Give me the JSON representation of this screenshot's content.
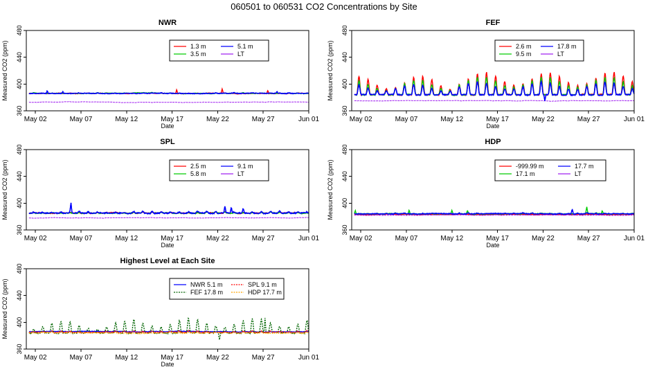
{
  "figure_title": "060501  to  060531 CO2 Concentrations by Site",
  "chart_data": [
    {
      "type": "line",
      "title": "NWR",
      "xlabel": "Date",
      "ylabel": "Measured CO2 (ppm)",
      "xlim": [
        0,
        31
      ],
      "ylim": [
        360,
        480
      ],
      "yticks": [
        360,
        400,
        440,
        480
      ],
      "ytick_labels": [
        "360",
        "400",
        "440",
        "480"
      ],
      "xticks": [
        1,
        6,
        11,
        16,
        21,
        26,
        31
      ],
      "xtick_labels": [
        "May 02",
        "May 07",
        "May 12",
        "May 17",
        "May 22",
        "May 27",
        "Jun 01"
      ],
      "legend": {
        "placement": "top-right",
        "columns": 2,
        "entries": [
          "1.3 m",
          "3.5 m",
          "5.1 m",
          "LT"
        ]
      },
      "series": [
        {
          "name": "1.3 m",
          "color": "#ff0000",
          "base": 386,
          "diurnal": 0.5,
          "noise": 0.8,
          "spikes": [
            [
              16.5,
              6
            ],
            [
              21.5,
              7
            ],
            [
              26.5,
              5
            ]
          ]
        },
        {
          "name": "3.5 m",
          "color": "#00cc00",
          "base": 386,
          "diurnal": 0.5,
          "noise": 0.8,
          "spikes": []
        },
        {
          "name": "5.1 m",
          "color": "#0000ff",
          "base": 386,
          "diurnal": 0.5,
          "noise": 0.9,
          "spikes": [
            [
              2.3,
              4
            ],
            [
              4.0,
              3
            ],
            [
              27.5,
              3
            ]
          ]
        },
        {
          "name": "LT",
          "color": "#a020f0",
          "base": 373,
          "diurnal": 0,
          "noise": 0.3,
          "spikes": []
        }
      ]
    },
    {
      "type": "line",
      "title": "FEF",
      "xlabel": "Date",
      "ylabel": "Measured CO2 (ppm)",
      "xlim": [
        0,
        31
      ],
      "ylim": [
        360,
        480
      ],
      "yticks": [
        360,
        400,
        440,
        480
      ],
      "ytick_labels": [
        "360",
        "400",
        "440",
        "480"
      ],
      "xticks": [
        1,
        6,
        11,
        16,
        21,
        26,
        31
      ],
      "xtick_labels": [
        "May 02",
        "May 07",
        "May 12",
        "May 17",
        "May 22",
        "May 27",
        "Jun 01"
      ],
      "legend": {
        "placement": "top-right",
        "columns": 2,
        "entries": [
          "2.6 m",
          "9.5 m",
          "17.8 m",
          "LT"
        ]
      },
      "series": [
        {
          "name": "2.6 m",
          "color": "#ff0000",
          "base": 384,
          "diurnal": 28,
          "noise": 1.5,
          "spikes": []
        },
        {
          "name": "9.5 m",
          "color": "#00cc00",
          "base": 384,
          "diurnal": 22,
          "noise": 1.5,
          "spikes": []
        },
        {
          "name": "17.8 m",
          "color": "#0000ff",
          "base": 384,
          "diurnal": 16,
          "noise": 1.5,
          "spikes": [
            [
              21.2,
              -10
            ]
          ]
        },
        {
          "name": "LT",
          "color": "#a020f0",
          "base": 375,
          "diurnal": 0,
          "noise": 0.3,
          "spikes": []
        }
      ]
    },
    {
      "type": "line",
      "title": "SPL",
      "xlabel": "Date",
      "ylabel": "Measured CO2 (ppm)",
      "xlim": [
        0,
        31
      ],
      "ylim": [
        360,
        480
      ],
      "yticks": [
        360,
        400,
        440,
        480
      ],
      "ytick_labels": [
        "360",
        "400",
        "440",
        "480"
      ],
      "xticks": [
        1,
        6,
        11,
        16,
        21,
        26,
        31
      ],
      "xtick_labels": [
        "May 02",
        "May 07",
        "May 12",
        "May 17",
        "May 22",
        "May 27",
        "Jun 01"
      ],
      "legend": {
        "placement": "top-right",
        "columns": 2,
        "entries": [
          "2.5 m",
          "5.8 m",
          "9.1 m",
          "LT"
        ]
      },
      "series": [
        {
          "name": "2.5 m",
          "color": "#ff0000",
          "base": 385,
          "diurnal": 1.5,
          "noise": 1.2,
          "spikes": []
        },
        {
          "name": "5.8 m",
          "color": "#00cc00",
          "base": 385,
          "diurnal": 1.5,
          "noise": 1.2,
          "spikes": []
        },
        {
          "name": "9.1 m",
          "color": "#0000ff",
          "base": 385,
          "diurnal": 2.5,
          "noise": 1.5,
          "spikes": [
            [
              4.9,
              14
            ],
            [
              21.8,
              8
            ],
            [
              22.5,
              9
            ],
            [
              23.8,
              6
            ]
          ]
        },
        {
          "name": "LT",
          "color": "#a020f0",
          "base": 378,
          "diurnal": 0,
          "noise": 0.3,
          "spikes": []
        }
      ]
    },
    {
      "type": "line",
      "title": "HDP",
      "xlabel": "Date",
      "ylabel": "Measured CO2 (ppm)",
      "xlim": [
        0,
        31
      ],
      "ylim": [
        360,
        480
      ],
      "yticks": [
        360,
        400,
        440,
        480
      ],
      "ytick_labels": [
        "360",
        "400",
        "440",
        "480"
      ],
      "xticks": [
        1,
        6,
        11,
        16,
        21,
        26,
        31
      ],
      "xtick_labels": [
        "May 02",
        "May 07",
        "May 12",
        "May 17",
        "May 22",
        "May 27",
        "Jun 01"
      ],
      "legend": {
        "placement": "top-right",
        "columns": 2,
        "entries": [
          "-999.99 m",
          "17.1 m",
          "17.7 m",
          "LT"
        ]
      },
      "series": [
        {
          "name": "-999.99 m",
          "color": "#ff0000",
          "base": 383,
          "diurnal": 0.5,
          "noise": 0.6,
          "spikes": []
        },
        {
          "name": "17.1 m",
          "color": "#00cc00",
          "base": 384,
          "diurnal": 1,
          "noise": 1,
          "spikes": [
            [
              0.4,
              5
            ],
            [
              6.3,
              6
            ],
            [
              11.0,
              6
            ],
            [
              12.7,
              5
            ],
            [
              25.8,
              9
            ],
            [
              27.5,
              4
            ]
          ]
        },
        {
          "name": "17.7 m",
          "color": "#0000ff",
          "base": 384,
          "diurnal": 1,
          "noise": 1,
          "spikes": [
            [
              24.2,
              8
            ]
          ]
        },
        {
          "name": "LT",
          "color": "#a020f0",
          "base": 382,
          "diurnal": 0,
          "noise": 0.3,
          "spikes": []
        }
      ]
    },
    {
      "type": "line",
      "title": "Highest Level at Each Site",
      "xlabel": "Date",
      "ylabel": "Measured CO2 (ppm)",
      "xlim": [
        0,
        31
      ],
      "ylim": [
        360,
        480
      ],
      "yticks": [
        360,
        400,
        440,
        480
      ],
      "ytick_labels": [
        "360",
        "400",
        "440",
        "480"
      ],
      "xticks": [
        1,
        6,
        11,
        16,
        21,
        26,
        31
      ],
      "xtick_labels": [
        "May 02",
        "May 07",
        "May 12",
        "May 17",
        "May 22",
        "May 27",
        "Jun 01"
      ],
      "legend": {
        "placement": "top-right",
        "columns": 2,
        "entries": [
          "NWR  5.1 m",
          "FEF  17.8 m",
          "SPL  9.1 m",
          "HDP  17.7 m"
        ]
      },
      "series": [
        {
          "name": "NWR  5.1 m",
          "color": "#0000ff",
          "base": 386,
          "diurnal": 0.5,
          "noise": 0.9,
          "spikes": []
        },
        {
          "name": "FEF  17.8 m",
          "color": "#006400",
          "base": 384,
          "diurnal": 18,
          "noise": 1.5,
          "spikes": [
            [
              21.2,
              -10
            ],
            [
              26.2,
              22
            ]
          ]
        },
        {
          "name": "SPL  9.1 m",
          "color": "#ff0000",
          "base": 385,
          "diurnal": 2,
          "noise": 1.2,
          "spikes": []
        },
        {
          "name": "HDP  17.7 m",
          "color": "#ffa500",
          "base": 384,
          "diurnal": 1,
          "noise": 1,
          "spikes": []
        }
      ]
    }
  ]
}
